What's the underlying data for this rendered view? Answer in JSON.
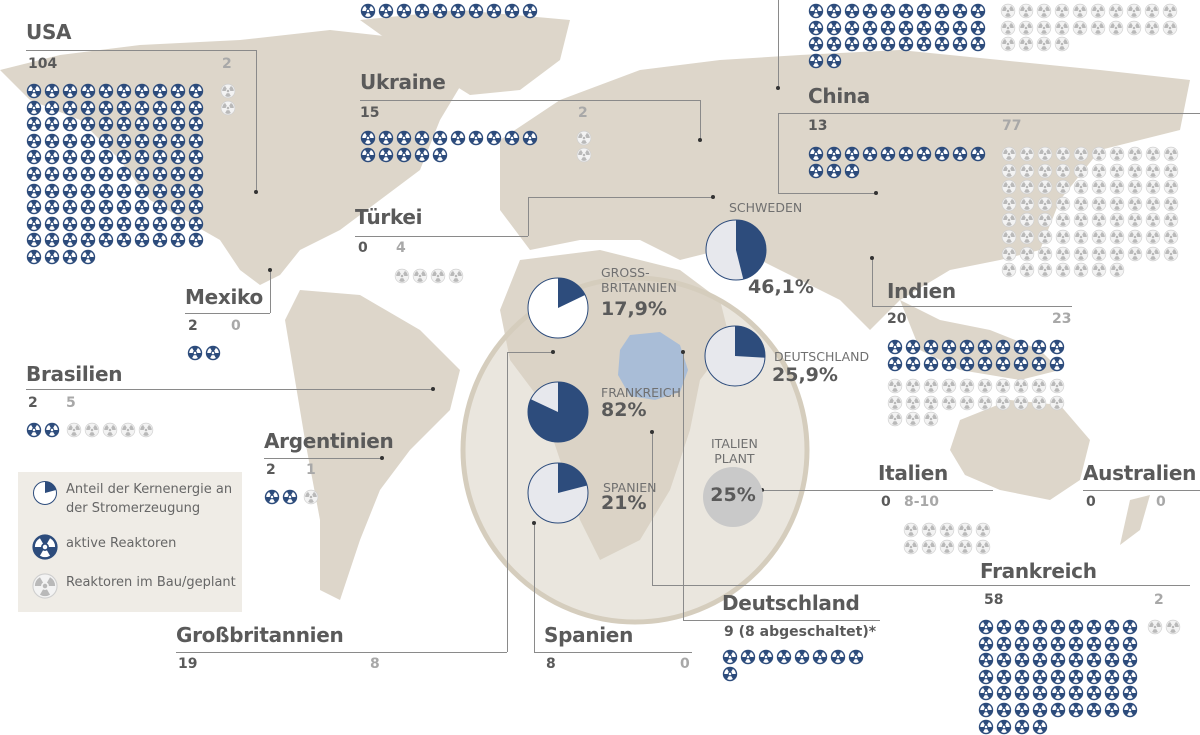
{
  "colors": {
    "active": "#2d4c7c",
    "planned": "#f1f1f1",
    "land": "#ddd6ca",
    "germany_highlight": "#a9bdd7",
    "italy_planned": "#c9c9c9"
  },
  "countries": {
    "top_partial": {
      "name": "",
      "active": 10,
      "planned": 0
    },
    "russia": {
      "name": "",
      "active": 32,
      "planned": 24
    },
    "usa": {
      "name": "USA",
      "active": 104,
      "planned": 2,
      "active_label": "104",
      "planned_label": "2"
    },
    "ukraine": {
      "name": "Ukraine",
      "active": 15,
      "planned": 2,
      "active_label": "15",
      "planned_label": "2"
    },
    "china": {
      "name": "China",
      "active": 13,
      "planned": 77,
      "active_label": "13",
      "planned_label": "77"
    },
    "tuerkei": {
      "name": "Türkei",
      "active": 0,
      "planned": 4,
      "active_label": "0",
      "planned_label": "4"
    },
    "indien": {
      "name": "Indien",
      "active": 20,
      "planned": 23,
      "active_label": "20",
      "planned_label": "23"
    },
    "mexiko": {
      "name": "Mexiko",
      "active": 2,
      "planned": 0,
      "active_label": "2",
      "planned_label": "0"
    },
    "brasilien": {
      "name": "Brasilien",
      "active": 2,
      "planned": 5,
      "active_label": "2",
      "planned_label": "5"
    },
    "argentinien": {
      "name": "Argentinien",
      "active": 2,
      "planned": 1,
      "active_label": "2",
      "planned_label": "1"
    },
    "italien": {
      "name": "Italien",
      "active": 0,
      "planned": 10,
      "active_label": "0",
      "planned_label": "8-10"
    },
    "australien": {
      "name": "Australien",
      "active": 0,
      "planned": 0,
      "active_label": "0",
      "planned_label": "0"
    },
    "frankreich": {
      "name": "Frankreich",
      "active": 58,
      "planned": 2,
      "active_label": "58",
      "planned_label": "2"
    },
    "deutschland": {
      "name": "Deutschland",
      "active": 9,
      "planned": 0,
      "active_label": "9 (8 abgeschaltet)*"
    },
    "spanien": {
      "name": "Spanien",
      "active": 8,
      "planned": 0,
      "active_label": "8",
      "planned_label": "0"
    },
    "grossbritannien": {
      "name": "Großbritannien",
      "active": 19,
      "planned": 8,
      "active_label": "19",
      "planned_label": "8"
    }
  },
  "pies": {
    "schweden": {
      "label": "SCHWEDEN",
      "percent": 46.1,
      "percent_label": "46,1%"
    },
    "grossbritannien": {
      "label": "GROSS-\nBRITANNIEN",
      "percent": 17.9,
      "percent_label": "17,9%"
    },
    "deutschland": {
      "label": "DEUTSCHLAND",
      "percent": 25.9,
      "percent_label": "25,9%"
    },
    "frankreich": {
      "label": "FRANKREICH",
      "percent": 82,
      "percent_label": "82%"
    },
    "spanien": {
      "label": "SPANIEN",
      "percent": 21,
      "percent_label": "21%"
    },
    "italien": {
      "label": "ITALIEN\nPLANT",
      "percent": 25,
      "percent_label": "25%"
    }
  },
  "legend": {
    "share": "Anteil der Kernenergie an der Stromerzeugung",
    "active": "aktive Reaktoren",
    "planned": "Reaktoren im Bau/geplant",
    "share_icon": "pie-icon",
    "active_icon": "radiation-active-icon",
    "planned_icon": "radiation-planned-icon"
  }
}
